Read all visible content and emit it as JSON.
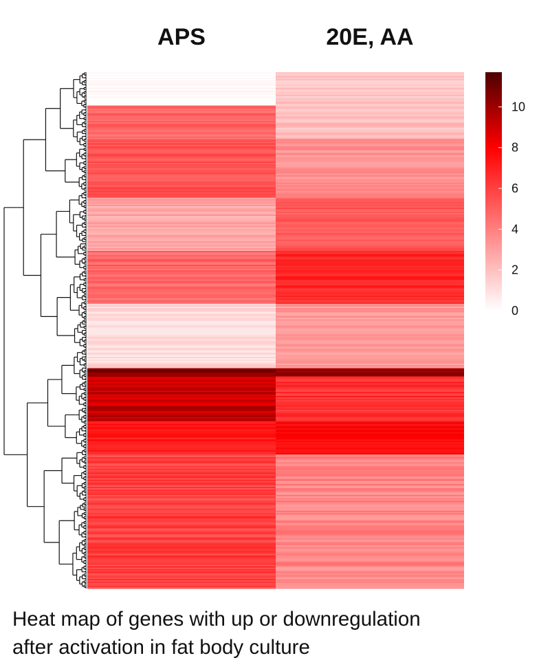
{
  "chart_data": {
    "type": "heatmap",
    "title": "",
    "columns": [
      "APS",
      "20E, AA"
    ],
    "scale": {
      "min": 0,
      "max": 11.7,
      "ticks": [
        0,
        2,
        4,
        6,
        8,
        10
      ],
      "colors": [
        "#ffffff",
        "#ff0000",
        "#4d0000"
      ],
      "color_stops": [
        0,
        8,
        11.7
      ]
    },
    "row_blocks": [
      {
        "rows": 24,
        "values": [
          0.2,
          1.8
        ],
        "jitter": [
          0.3,
          0.6
        ]
      },
      {
        "rows": 24,
        "values": [
          4.8,
          2.0
        ],
        "jitter": [
          0.7,
          0.6
        ]
      },
      {
        "rows": 42,
        "values": [
          5.5,
          3.5
        ],
        "jitter": [
          0.7,
          0.6
        ]
      },
      {
        "rows": 38,
        "values": [
          2.8,
          5.2
        ],
        "jitter": [
          0.7,
          0.6
        ]
      },
      {
        "rows": 38,
        "values": [
          4.8,
          6.8
        ],
        "jitter": [
          0.8,
          0.7
        ]
      },
      {
        "rows": 46,
        "values": [
          1.2,
          3.2
        ],
        "jitter": [
          0.6,
          0.6
        ]
      },
      {
        "rows": 6,
        "values": [
          10.5,
          10.0
        ],
        "jitter": [
          0.8,
          1.0
        ]
      },
      {
        "rows": 32,
        "values": [
          9.2,
          6.5
        ],
        "jitter": [
          0.8,
          0.7
        ]
      },
      {
        "rows": 24,
        "values": [
          7.2,
          7.8
        ],
        "jitter": [
          0.7,
          0.6
        ]
      },
      {
        "rows": 96,
        "values": [
          6.0,
          3.8
        ],
        "jitter": [
          0.9,
          0.8
        ]
      }
    ],
    "row_dendrogram": true
  },
  "caption": {
    "line1": "Heat map of genes with up or downregulation",
    "line2": "after activation in fat body culture"
  }
}
